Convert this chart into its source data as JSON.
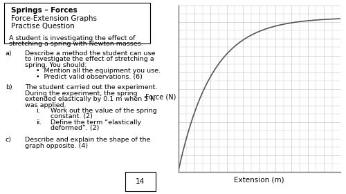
{
  "title_bold": "Springs – Forces",
  "title_line2": "Force-Extension Graphs",
  "title_line3": "Practise Question",
  "intro_line1": "A student is investigating the effect of",
  "intro_line2": "stretching a spring with Newton masses.",
  "qa_label": "a)",
  "qa_line1": "Describe a method the student can use",
  "qa_line2": "to investigate the effect of stretching a",
  "qa_line3": "spring. You should:",
  "qa_bullet1": "•  Mention all the equipment you use.",
  "qa_bullet2": "•  Predict valid observations. (6)",
  "qb_label": "b)",
  "qb_line1": "The student carried out the experiment.",
  "qb_line2": "During the experiment, the spring",
  "qb_line3": "extended elastically by 0.1 m when 5 N",
  "qb_line4": "was applied.",
  "qb_i": "i.",
  "qb_i_line1": "Work out the value of the spring",
  "qb_i_line2": "constant. (2)",
  "qb_ii": "ii.",
  "qb_ii_line1": "Define the term “elastically",
  "qb_ii_line2": "deformed”. (2)",
  "qc_label": "c)",
  "qc_line1": "Describe and explain the shape of the",
  "qc_line2": "graph opposite. (4)",
  "page_number": "14",
  "graph_xlabel": "Extension (m)",
  "graph_ylabel": "Force (N)",
  "background_color": "#ffffff",
  "grid_color": "#c8c8c8",
  "curve_color": "#555555",
  "text_color": "#000000",
  "box_color": "#000000",
  "font_size_title": 7.5,
  "font_size_body": 6.8
}
